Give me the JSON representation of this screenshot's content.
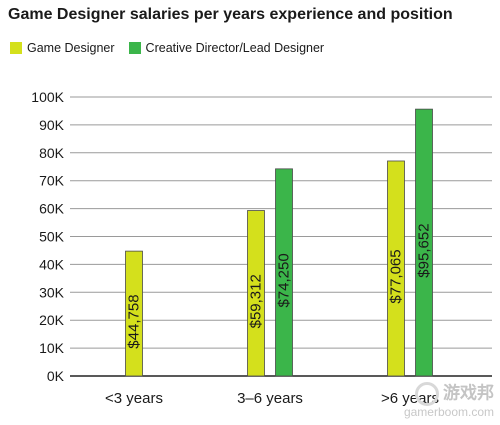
{
  "chart_data": {
    "type": "bar",
    "title": "Game Designer salaries per years experience and position",
    "categories": [
      "<3 years",
      "3–6 years",
      ">6 years"
    ],
    "series": [
      {
        "name": "Game Designer",
        "color": "#d4e01c",
        "values": [
          44758,
          59312,
          77065
        ],
        "labels": [
          "$44,758",
          "$59,312",
          "$77,065"
        ]
      },
      {
        "name": "Creative Director/Lead Designer",
        "color": "#3bb54a",
        "values": [
          null,
          74250,
          95652
        ],
        "labels": [
          null,
          "$74,250",
          "$95,652"
        ]
      }
    ],
    "yticks": [
      "0K",
      "10K",
      "20K",
      "30K",
      "40K",
      "50K",
      "60K",
      "70K",
      "80K",
      "90K",
      "100K"
    ],
    "ylim": [
      0,
      100000
    ],
    "grid": "horizontal",
    "legend_position": "top-left",
    "xlabel": "",
    "ylabel": ""
  },
  "watermark": {
    "name": "游戏邦",
    "url": "gamerboom.com"
  }
}
